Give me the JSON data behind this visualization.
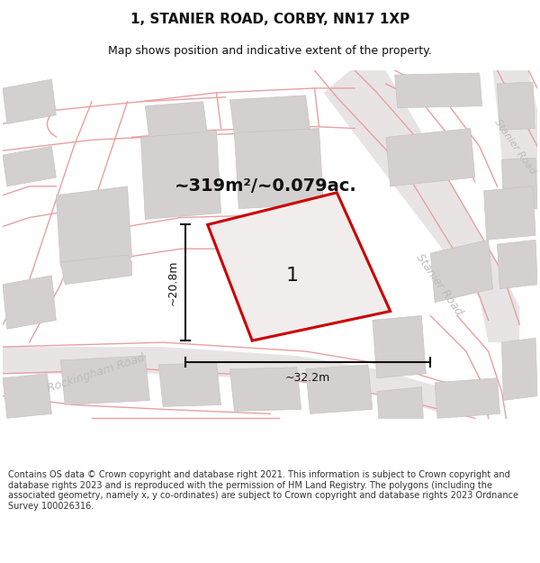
{
  "title": "1, STANIER ROAD, CORBY, NN17 1XP",
  "subtitle": "Map shows position and indicative extent of the property.",
  "area_text": "~319m²/~0.079ac.",
  "label_number": "1",
  "dim_width": "~32.2m",
  "dim_height": "~20.8m",
  "road_label_rockingham": "Rockingham Road",
  "road_label_stanier_mid": "Stanier Road",
  "road_label_stanier_right": "Stanier Road",
  "footer": "Contains OS data © Crown copyright and database right 2021. This information is subject to Crown copyright and database rights 2023 and is reproduced with the permission of HM Land Registry. The polygons (including the associated geometry, namely x, y co-ordinates) are subject to Crown copyright and database rights 2023 Ordnance Survey 100026316.",
  "map_bg": "#f2f0f0",
  "road_surface": "#e8e4e4",
  "building_color": "#d4d0d0",
  "building_edge": "#c8c4c4",
  "road_line_color": "#e8a0a0",
  "plot_fill": "#f0edec",
  "plot_edge": "#cc0000",
  "dim_line_color": "#111111",
  "text_color": "#111111",
  "road_text_color": "#c0bcbc",
  "footer_color": "#333333",
  "title_fontsize": 11,
  "subtitle_fontsize": 9,
  "area_fontsize": 14,
  "dim_fontsize": 9,
  "road_fontsize": 9,
  "footer_fontsize": 7
}
